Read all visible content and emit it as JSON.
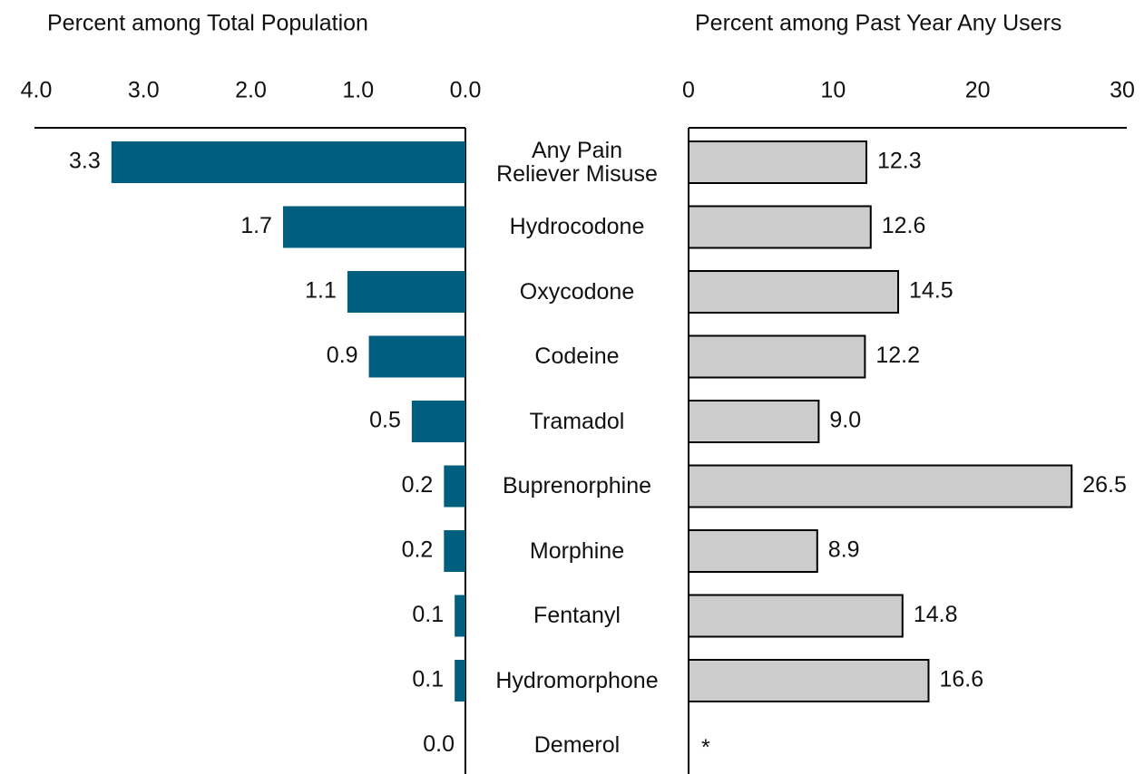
{
  "chart_data": [
    {
      "type": "barh",
      "title": "Percent among Total Population",
      "categories": [
        "Any Pain Reliever Misuse",
        "Hydrocodone",
        "Oxycodone",
        "Codeine",
        "Tramadol",
        "Buprenorphine",
        "Morphine",
        "Fentanyl",
        "Hydromorphone",
        "Demerol"
      ],
      "values": [
        3.3,
        1.7,
        1.1,
        0.9,
        0.5,
        0.2,
        0.2,
        0.1,
        0.1,
        0
      ],
      "value_labels": [
        "3.3",
        "1.7",
        "1.1",
        "0.9",
        "0.5",
        "0.2",
        "0.2",
        "0.1",
        "0.1",
        "0.0"
      ],
      "color": "#005f7f",
      "xlim": [
        4,
        0
      ],
      "xticks": [
        {
          "value": 4,
          "label": "4.0"
        },
        {
          "value": 3,
          "label": "3.0"
        },
        {
          "value": 2,
          "label": "2.0"
        },
        {
          "value": 1,
          "label": "1.0"
        },
        {
          "value": 0,
          "label": "0.0"
        }
      ]
    },
    {
      "type": "barh",
      "title": "Percent among Past Year Any Users",
      "values": [
        12.3,
        12.6,
        14.5,
        12.2,
        9,
        26.5,
        8.9,
        14.8,
        16.6,
        null
      ],
      "value_labels": [
        "12.3",
        "12.6",
        "14.5",
        "12.2",
        "9.0",
        "26.5",
        "8.9",
        "14.8",
        "16.6",
        "*"
      ],
      "color": "#cccccc",
      "xlim": [
        0,
        30
      ],
      "xticks": [
        0,
        10,
        20,
        30
      ]
    }
  ]
}
